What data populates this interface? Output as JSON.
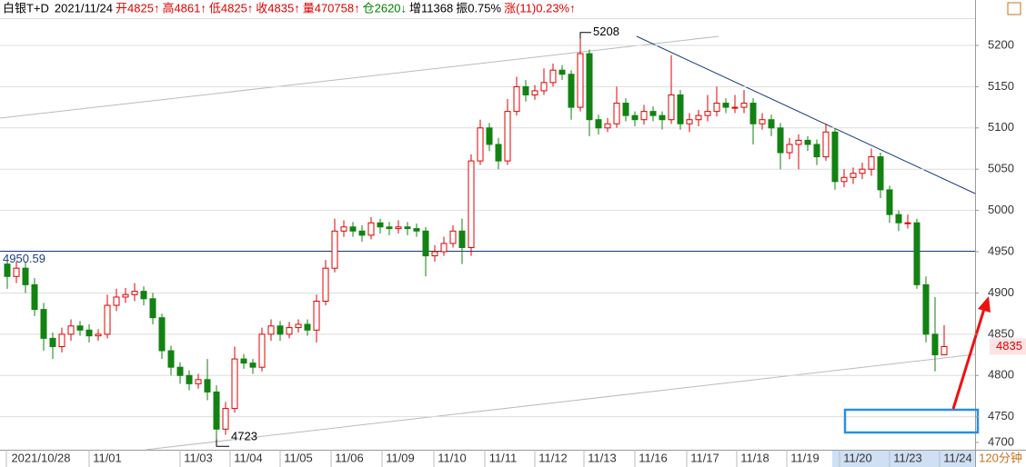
{
  "chart_data": {
    "type": "candlestick",
    "header": [
      {
        "text": "白银T+D",
        "color": "#000000"
      },
      {
        "text": "2021/11/24",
        "color": "#000000"
      },
      {
        "text": "开4825↑",
        "color": "#e00000"
      },
      {
        "text": "高4861↑",
        "color": "#e00000"
      },
      {
        "text": "低4825↑",
        "color": "#e00000"
      },
      {
        "text": "收4835↑",
        "color": "#e00000"
      },
      {
        "text": "量470758↑",
        "color": "#e00000"
      },
      {
        "text": "仓2620↓",
        "color": "#008000"
      },
      {
        "text": "增11368",
        "color": "#000000"
      },
      {
        "text": "振0.75%",
        "color": "#000000"
      },
      {
        "text": "涨(11)0.23%↑",
        "color": "#e00000"
      }
    ],
    "period": "120分钟",
    "date_labels": [
      "2021/10/28",
      "11/01",
      "11/03",
      "11/04",
      "11/05",
      "11/06",
      "11/09",
      "11/10",
      "11/11",
      "11/12",
      "11/13",
      "11/16",
      "11/17",
      "11/18",
      "11/19",
      "11/20",
      "11/23",
      "11/24"
    ],
    "open": [
      4935,
      4920,
      4930,
      4910,
      4880,
      4845,
      4835,
      4850,
      4860,
      4855,
      4848,
      4850,
      4885,
      4895,
      4898,
      4902,
      4893,
      4870,
      4830,
      4810,
      4800,
      4790,
      4795,
      4780,
      4735,
      4760,
      4820,
      4815,
      4810,
      4850,
      4860,
      4850,
      4858,
      4862,
      4855,
      4890,
      4930,
      4975,
      4980,
      4975,
      4970,
      4985,
      4980,
      4978,
      4980,
      4978,
      4975,
      4945,
      4950,
      4960,
      4975,
      4955,
      5060,
      5100,
      5080,
      5060,
      5120,
      5150,
      5140,
      5145,
      5155,
      5170,
      5165,
      5125,
      5190,
      5110,
      5100,
      5105,
      5130,
      5115,
      5110,
      5120,
      5115,
      5110,
      5140,
      5105,
      5110,
      5115,
      5120,
      5130,
      5125,
      5125,
      5130,
      5105,
      5110,
      5100,
      5070,
      5080,
      5085,
      5080,
      5065,
      5095,
      5035,
      5040,
      5045,
      5050,
      5065,
      5025,
      4995,
      4985,
      4985,
      4910,
      4850,
      4825
    ],
    "high": [
      4945,
      4938,
      4938,
      4918,
      4888,
      4852,
      4858,
      4868,
      4866,
      4862,
      4856,
      4898,
      4905,
      4906,
      4912,
      4908,
      4900,
      4875,
      4836,
      4816,
      4806,
      4802,
      4820,
      4788,
      4768,
      4835,
      4826,
      4820,
      4858,
      4868,
      4866,
      4865,
      4868,
      4868,
      4898,
      4940,
      4990,
      4988,
      4986,
      4982,
      4992,
      4990,
      4986,
      4988,
      4986,
      4984,
      4980,
      4958,
      4968,
      4982,
      4990,
      5068,
      5110,
      5106,
      5088,
      5135,
      5162,
      5158,
      5152,
      5172,
      5178,
      5176,
      5170,
      5208,
      5195,
      5116,
      5112,
      5150,
      5136,
      5120,
      5128,
      5126,
      5120,
      5188,
      5146,
      5118,
      5122,
      5140,
      5150,
      5136,
      5140,
      5146,
      5136,
      5118,
      5116,
      5106,
      5088,
      5092,
      5090,
      5086,
      5105,
      5100,
      5050,
      5052,
      5058,
      5075,
      5070,
      5030,
      5000,
      4995,
      4990,
      4920,
      4895,
      4861
    ],
    "low": [
      4905,
      4912,
      4900,
      4872,
      4830,
      4820,
      4828,
      4842,
      4848,
      4840,
      4842,
      4845,
      4878,
      4888,
      4890,
      4885,
      4862,
      4820,
      4800,
      4790,
      4782,
      4784,
      4770,
      4723,
      4728,
      4755,
      4808,
      4802,
      4805,
      4842,
      4842,
      4845,
      4852,
      4848,
      4840,
      4885,
      4925,
      4968,
      4968,
      4962,
      4965,
      4972,
      4970,
      4972,
      4970,
      4968,
      4920,
      4938,
      4945,
      4955,
      4935,
      4945,
      5055,
      5072,
      5050,
      5055,
      5115,
      5132,
      5134,
      5140,
      5150,
      5158,
      5110,
      5120,
      5090,
      5092,
      5095,
      5100,
      5108,
      5102,
      5104,
      5108,
      5098,
      5105,
      5098,
      5095,
      5102,
      5108,
      5114,
      5118,
      5118,
      5118,
      5080,
      5098,
      5090,
      5050,
      5062,
      5050,
      5072,
      5055,
      5060,
      5025,
      5028,
      5032,
      5038,
      5042,
      5015,
      4985,
      4975,
      4978,
      4905,
      4840,
      4805,
      4825
    ],
    "close": [
      4920,
      4930,
      4910,
      4880,
      4845,
      4835,
      4850,
      4860,
      4855,
      4848,
      4850,
      4885,
      4895,
      4898,
      4902,
      4893,
      4870,
      4830,
      4810,
      4800,
      4790,
      4795,
      4780,
      4735,
      4760,
      4820,
      4815,
      4810,
      4850,
      4860,
      4850,
      4858,
      4862,
      4855,
      4890,
      4930,
      4975,
      4980,
      4975,
      4970,
      4985,
      4980,
      4978,
      4980,
      4978,
      4975,
      4945,
      4950,
      4960,
      4975,
      4955,
      5060,
      5100,
      5080,
      5060,
      5120,
      5150,
      5140,
      5145,
      5155,
      5170,
      5165,
      5125,
      5190,
      5110,
      5100,
      5105,
      5130,
      5115,
      5110,
      5120,
      5115,
      5110,
      5140,
      5105,
      5110,
      5115,
      5120,
      5130,
      5125,
      5125,
      5130,
      5105,
      5110,
      5100,
      5070,
      5080,
      5085,
      5080,
      5065,
      5095,
      5035,
      5040,
      5045,
      5050,
      5065,
      5025,
      4995,
      4985,
      4985,
      4910,
      4850,
      4825,
      4835
    ],
    "up_color": "#e00000",
    "down_color": "#128212",
    "ylim": [
      4710,
      5233
    ],
    "yticks": [
      4700,
      4750,
      4800,
      4850,
      4900,
      4950,
      5000,
      5050,
      5100,
      5150,
      5200
    ],
    "grid": true,
    "reference_line": {
      "value": 4950.59,
      "label": "4950.59"
    },
    "high_mark": 5208,
    "low_mark": 4723,
    "last_price": 4835
  }
}
